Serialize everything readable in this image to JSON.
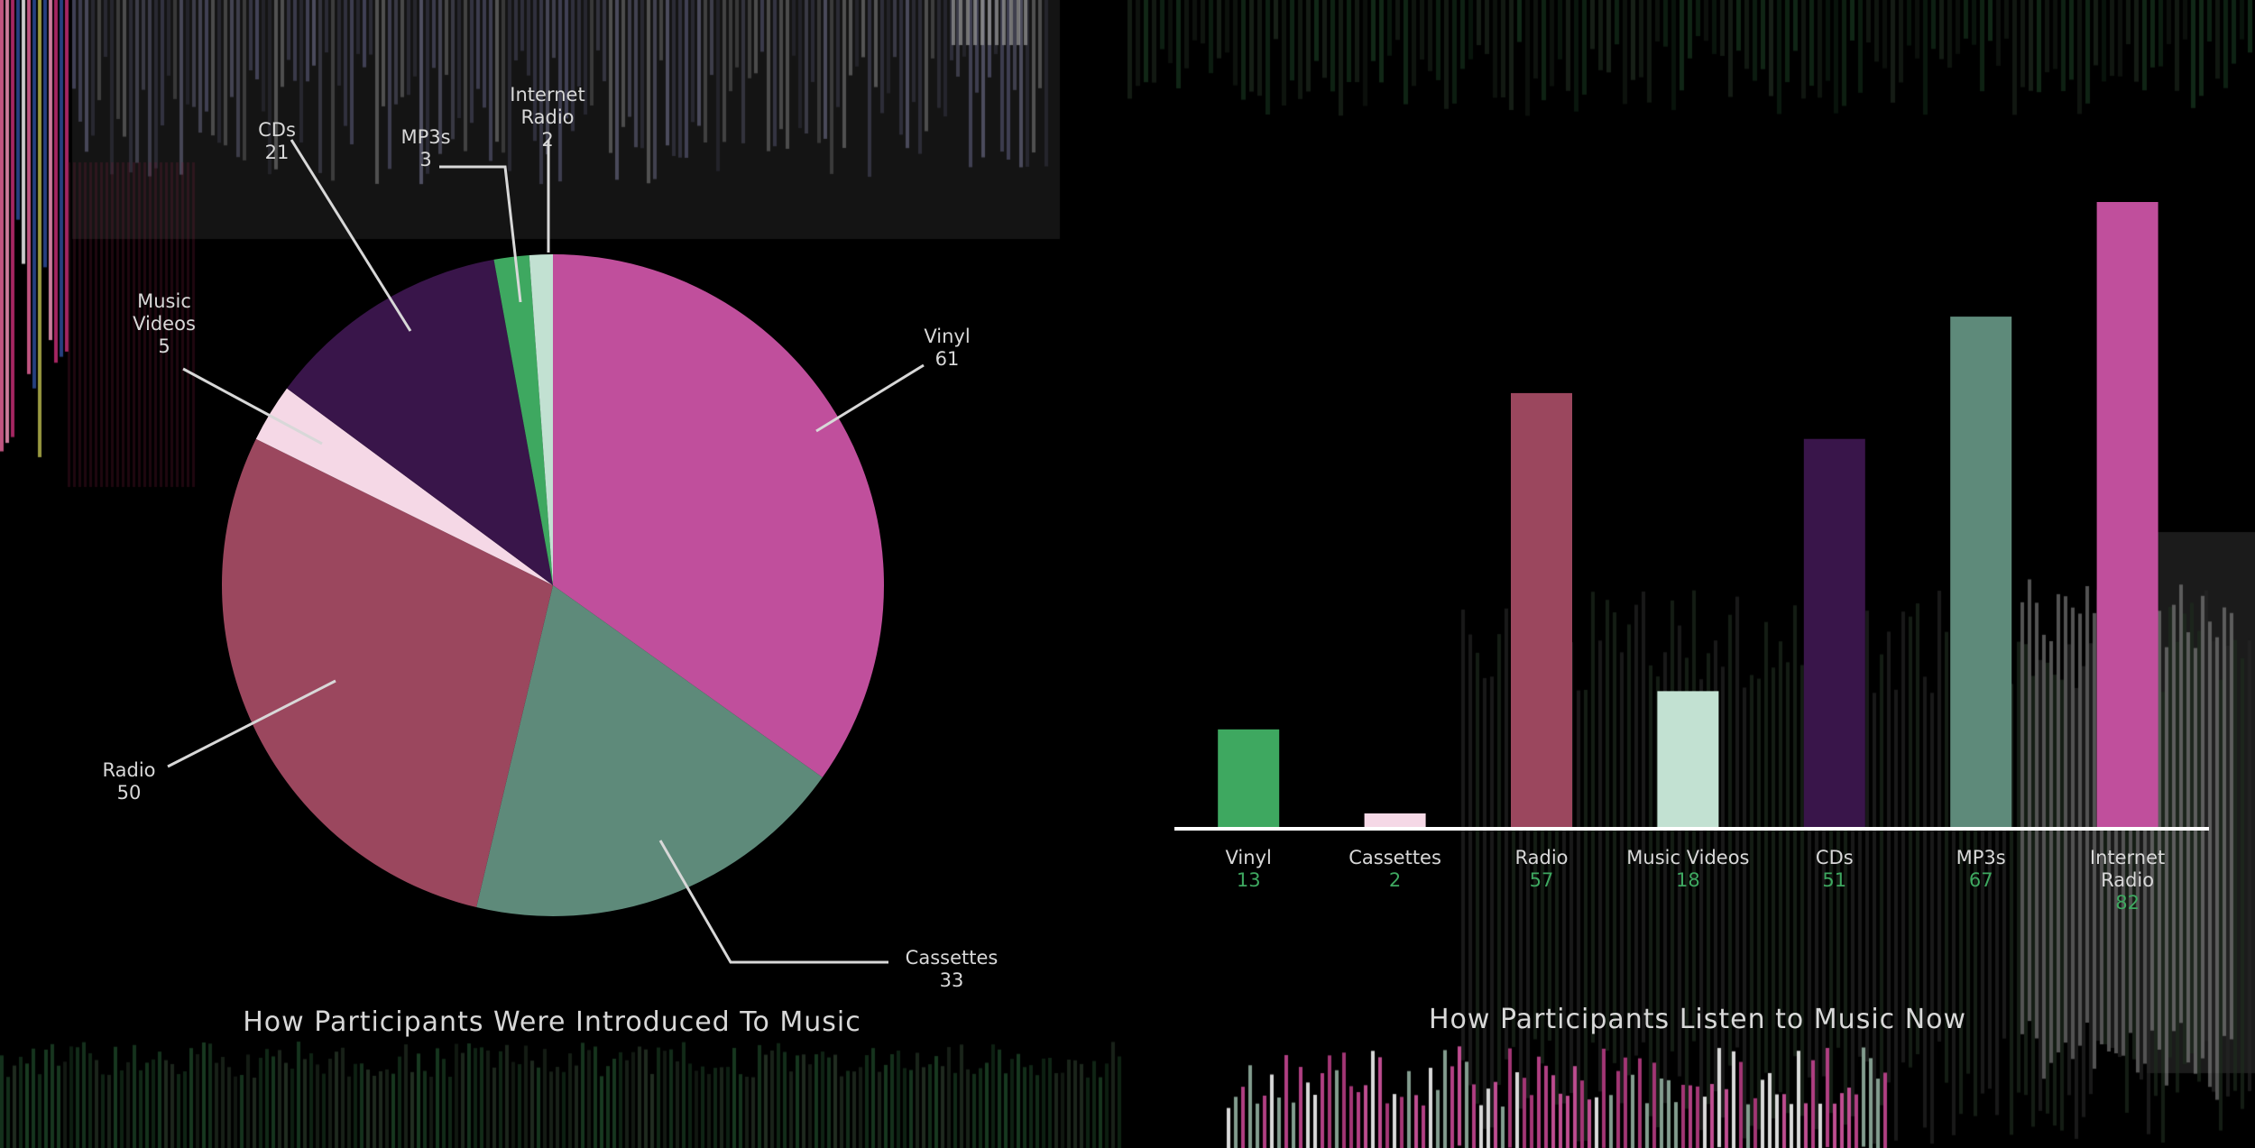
{
  "chart_data": [
    {
      "type": "pie",
      "title": "How Participants Were Introduced To Music",
      "slices": [
        {
          "label": "Vinyl",
          "value": 61,
          "color": "#c04f9c"
        },
        {
          "label": "Cassettes",
          "value": 33,
          "color": "#5e8a7a"
        },
        {
          "label": "Radio",
          "value": 50,
          "color": "#9b475e"
        },
        {
          "label": "Music Videos",
          "value": 5,
          "color": "#f5d8e6"
        },
        {
          "label": "CDs",
          "value": 21,
          "color": "#39154a"
        },
        {
          "label": "MP3s",
          "value": 3,
          "color": "#3ea860"
        },
        {
          "label": "Internet Radio",
          "value": 2,
          "color": "#c2e1d2"
        }
      ],
      "slice_label_lines": [
        [
          "Vinyl",
          "61"
        ],
        [
          "Cassettes",
          "33"
        ],
        [
          "Radio",
          "50"
        ],
        [
          "Music",
          "Videos",
          "5"
        ],
        [
          "CDs",
          "21"
        ],
        [
          "MP3s",
          "3"
        ],
        [
          "Internet",
          "Radio",
          "2"
        ]
      ]
    },
    {
      "type": "bar",
      "title": "How Participants Listen to Music Now",
      "categories": [
        "Vinyl",
        "Cassettes",
        "Radio",
        "Music Videos",
        "CDs",
        "MP3s",
        "Internet Radio"
      ],
      "category_label_lines": [
        [
          "Vinyl"
        ],
        [
          "Cassettes"
        ],
        [
          "Radio"
        ],
        [
          "Music Videos"
        ],
        [
          "CDs"
        ],
        [
          "MP3s"
        ],
        [
          "Internet",
          "Radio"
        ]
      ],
      "values": [
        13,
        2,
        57,
        18,
        51,
        67,
        82
      ],
      "value_labels": [
        "13",
        "2",
        "57",
        "18",
        "51",
        "67",
        "82"
      ],
      "colors": [
        "#3ea860",
        "#f5d8e6",
        "#9b475e",
        "#c2e1d2",
        "#39154a",
        "#5e8a7a",
        "#c04f9c"
      ],
      "value_label_color": "#3ea860",
      "ylim": [
        0,
        82
      ],
      "axes_visible": false,
      "grid": false
    }
  ]
}
